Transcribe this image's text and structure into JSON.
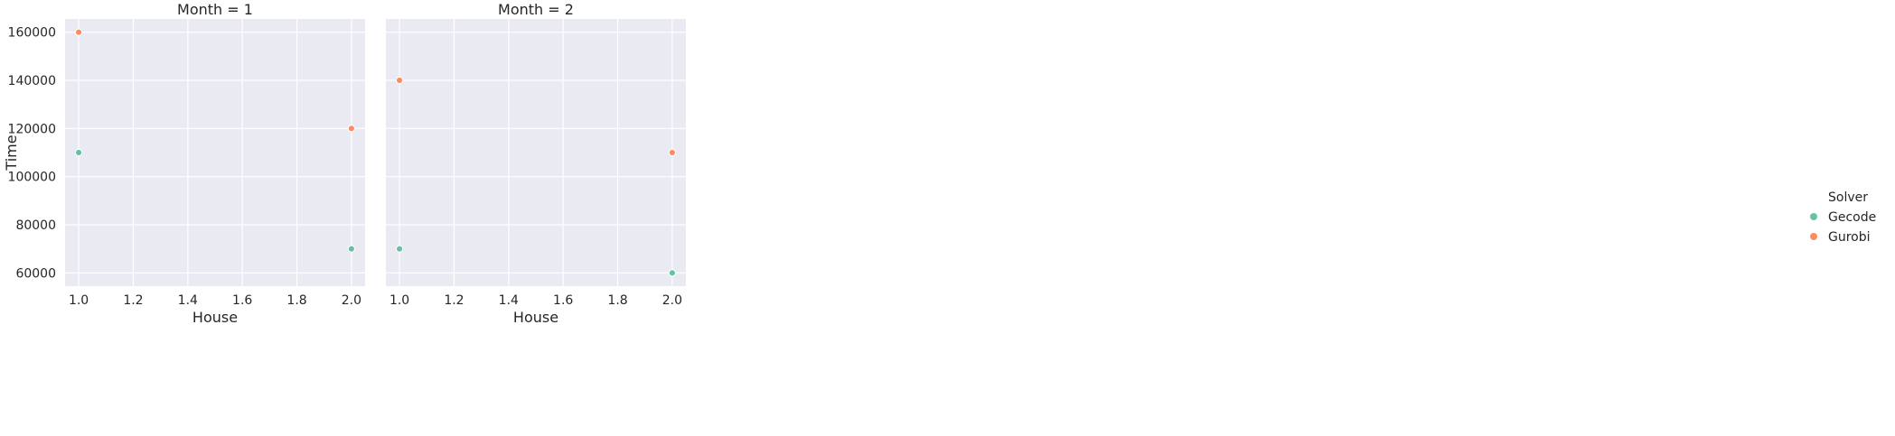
{
  "chart_data": {
    "type": "scatter",
    "facet_variable": "Month",
    "shared_y": true,
    "xlabel": "House",
    "ylabel": "Time",
    "xlim": [
      0.95,
      2.05
    ],
    "ylim": [
      54500,
      165500
    ],
    "xticks": [
      1.0,
      1.2,
      1.4,
      1.6,
      1.8,
      2.0
    ],
    "xtick_labels": [
      "1.0",
      "1.2",
      "1.4",
      "1.6",
      "1.8",
      "2.0"
    ],
    "yticks": [
      60000,
      80000,
      100000,
      120000,
      140000,
      160000
    ],
    "ytick_labels": [
      "60000",
      "80000",
      "100000",
      "120000",
      "140000",
      "160000"
    ],
    "grid": true,
    "legend": {
      "title": "Solver",
      "placement": "right",
      "entries": [
        {
          "name": "Gecode",
          "color": "#66c2a5"
        },
        {
          "name": "Gurobi",
          "color": "#fc8d62"
        }
      ]
    },
    "panels": [
      {
        "title": "Month = 1",
        "series": [
          {
            "name": "Gecode",
            "x": [
              1.0,
              2.0
            ],
            "y": [
              110000,
              70000
            ]
          },
          {
            "name": "Gurobi",
            "x": [
              1.0,
              2.0
            ],
            "y": [
              160000,
              120000
            ]
          }
        ]
      },
      {
        "title": "Month = 2",
        "series": [
          {
            "name": "Gecode",
            "x": [
              1.0,
              2.0
            ],
            "y": [
              70000,
              60000
            ]
          },
          {
            "name": "Gurobi",
            "x": [
              1.0,
              2.0
            ],
            "y": [
              140000,
              110000
            ]
          }
        ]
      }
    ]
  }
}
